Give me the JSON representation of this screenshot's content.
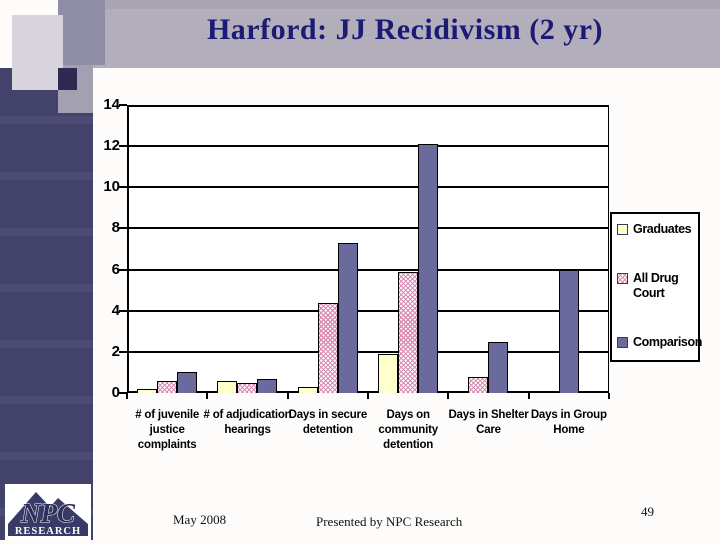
{
  "slide": {
    "title": "Harford: JJ Recidivism (2 yr)",
    "footer": {
      "date": "May 2008",
      "credit": "Presented by NPC Research",
      "page_number": "49"
    },
    "logo": {
      "text": "NPC",
      "subtext": "RESEARCH"
    }
  },
  "colors": {
    "title_text": "#1b1b75",
    "title_band": "#b3aebc",
    "sidebar": "#42426a",
    "plot_border": "#000000",
    "graduates": "#ffffcc",
    "all_drug_court": "#d98cb3",
    "comparison": "#6a6a9d"
  },
  "chart_data": {
    "type": "bar",
    "title": "",
    "xlabel": "",
    "ylabel": "",
    "categories": [
      "# of juvenile justice complaints",
      "# of adjudication hearings",
      "Days in secure detention",
      "Days on community detention",
      "Days in Shelter Care",
      "Days in Group Home"
    ],
    "series": [
      {
        "name": "Graduates",
        "color_key": "graduates",
        "pattern": "solid",
        "values": [
          0.2,
          0.6,
          0.3,
          1.9,
          0,
          0
        ]
      },
      {
        "name": "All Drug Court",
        "color_key": "all_drug_court",
        "pattern": "crosshatch",
        "values": [
          0.6,
          0.5,
          4.4,
          5.9,
          0.8,
          0
        ]
      },
      {
        "name": "Comparison",
        "color_key": "comparison",
        "pattern": "solid",
        "values": [
          1.0,
          0.7,
          7.3,
          12.1,
          2.5,
          6.0
        ]
      }
    ],
    "ylim": [
      0,
      14
    ],
    "ytick_step": 2,
    "grid": true,
    "legend_position": "right"
  }
}
